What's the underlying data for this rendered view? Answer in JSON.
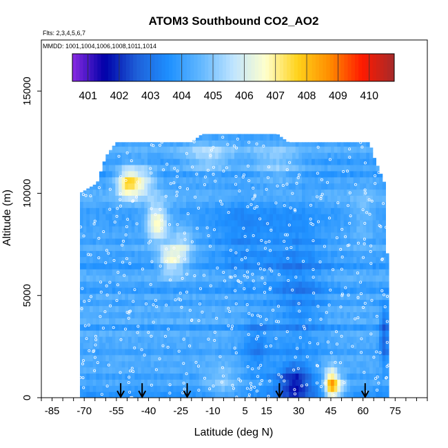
{
  "chart_data": {
    "type": "heatmap",
    "title": "ATOM3 Southbound CO2_AO2",
    "subtitle_lines": [
      "Flts: 2,3,4,5,6,7",
      "MMDD: 1001,1004,1006,1008,1011,1014"
    ],
    "xlabel": "Latitude (deg N)",
    "ylabel": "Altitude (m)",
    "xlim": [
      -90,
      90
    ],
    "ylim": [
      0,
      17500
    ],
    "x_ticks": [
      -85,
      -70,
      -55,
      -40,
      -25,
      -10,
      5,
      15,
      30,
      45,
      60,
      75
    ],
    "x_minor_ticks": [
      -90,
      -85,
      -80,
      -75,
      -70,
      -65,
      -60,
      -55,
      -50,
      -45,
      -40,
      -35,
      -30,
      -25,
      -20,
      -15,
      -10,
      -5,
      0,
      5,
      10,
      15,
      20,
      25,
      30,
      35,
      40,
      45,
      50,
      55,
      60,
      65,
      70,
      75,
      80,
      85,
      90
    ],
    "y_ticks": [
      0,
      5000,
      10000,
      15000
    ],
    "colorbar": {
      "ticks": [
        401,
        402,
        403,
        404,
        405,
        406,
        407,
        408,
        409,
        410
      ],
      "range": [
        400.5,
        410.8
      ],
      "colors": [
        "#8a2be2",
        "#0000a8",
        "#1e5fd8",
        "#1e90ff",
        "#63b8ff",
        "#bfe4ff",
        "#ffffcc",
        "#ffd21a",
        "#ff8c00",
        "#ff1a00",
        "#a52a2a"
      ]
    },
    "background_co2": 404.1,
    "altitude_top": [
      {
        "lat": -72,
        "alt": 10000
      },
      {
        "lat": -64,
        "alt": 10500
      },
      {
        "lat": -60,
        "alt": 11800
      },
      {
        "lat": -55,
        "alt": 12500
      },
      {
        "lat": -20,
        "alt": 12500
      },
      {
        "lat": -15,
        "alt": 12900
      },
      {
        "lat": 20,
        "alt": 12900
      },
      {
        "lat": 25,
        "alt": 12500
      },
      {
        "lat": 63,
        "alt": 12500
      },
      {
        "lat": 65,
        "alt": 11800
      },
      {
        "lat": 70,
        "alt": 10500
      },
      {
        "lat": 72,
        "alt": 5000
      }
    ],
    "features": [
      {
        "lat": -50,
        "alt": 10500,
        "value": 407.1,
        "lat_width": 5,
        "alt_width": 700
      },
      {
        "lat": -43,
        "alt": 10600,
        "value": 406.0,
        "lat_width": 6,
        "alt_width": 800
      },
      {
        "lat": -36,
        "alt": 8600,
        "value": 406.8,
        "lat_width": 5,
        "alt_width": 900
      },
      {
        "lat": -30,
        "alt": 6800,
        "value": 406.3,
        "lat_width": 5,
        "alt_width": 700
      },
      {
        "lat": -24,
        "alt": 7300,
        "value": 405.5,
        "lat_width": 5,
        "alt_width": 1000
      },
      {
        "lat": -12,
        "alt": 11800,
        "value": 405.4,
        "lat_width": 12,
        "alt_width": 700
      },
      {
        "lat": 20,
        "alt": 11500,
        "value": 405.2,
        "lat_width": 12,
        "alt_width": 900
      },
      {
        "lat": 5,
        "alt": 8000,
        "value": 403.4,
        "lat_width": 15,
        "alt_width": 2000
      },
      {
        "lat": 30,
        "alt": 5500,
        "value": 403.3,
        "lat_width": 12,
        "alt_width": 4000
      },
      {
        "lat": 60,
        "alt": 9000,
        "value": 404.8,
        "lat_width": 5,
        "alt_width": 1200
      },
      {
        "lat": 70,
        "alt": 3000,
        "value": 402.4,
        "lat_width": 2,
        "alt_width": 1500
      },
      {
        "lat": 45,
        "alt": 700,
        "value": 407.3,
        "lat_width": 3,
        "alt_width": 800
      },
      {
        "lat": 48,
        "alt": 500,
        "value": 406.0,
        "lat_width": 4,
        "alt_width": 600
      },
      {
        "lat": 28,
        "alt": 700,
        "value": 401.9,
        "lat_width": 8,
        "alt_width": 900
      },
      {
        "lat": 10,
        "alt": 2500,
        "value": 403.2,
        "lat_width": 7,
        "alt_width": 1500
      },
      {
        "lat": -5,
        "alt": 700,
        "value": 405.0,
        "lat_width": 8,
        "alt_width": 900
      }
    ],
    "arrows_lat": [
      -53,
      -43,
      -22,
      21,
      61
    ]
  }
}
